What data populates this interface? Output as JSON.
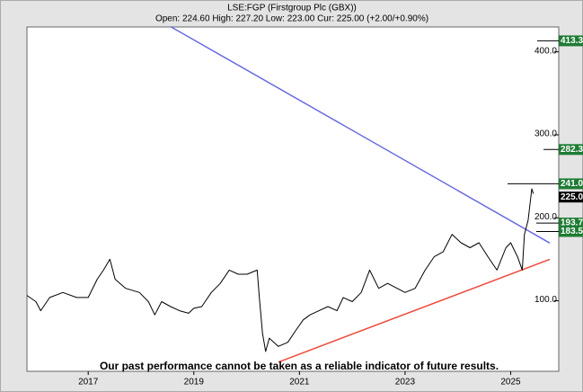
{
  "chart_data": {
    "type": "line",
    "title": "LSE:FGP (Firstgroup Plc (GBX))",
    "subtitle": "Open: 224.60 High: 227.20 Low: 223.00 Cur: 225.00 (+2.00/+0.90%)",
    "annotation": "Our past performance cannot be taken as a reliable indicator of future results.",
    "x": [
      2015.84,
      2016.01,
      2016.1,
      2016.27,
      2016.52,
      2016.78,
      2017.0,
      2017.17,
      2017.29,
      2017.41,
      2017.51,
      2017.71,
      2017.97,
      2018.14,
      2018.26,
      2018.39,
      2018.56,
      2018.73,
      2018.9,
      2019.0,
      2019.15,
      2019.33,
      2019.5,
      2019.67,
      2019.84,
      2020.01,
      2020.2,
      2020.24,
      2020.3,
      2020.36,
      2020.43,
      2020.6,
      2020.78,
      2020.95,
      2021.07,
      2021.2,
      2021.37,
      2021.54,
      2021.71,
      2021.83,
      2022.0,
      2022.17,
      2022.33,
      2022.5,
      2022.67,
      2022.85,
      2023.0,
      2023.19,
      2023.38,
      2023.55,
      2023.72,
      2023.89,
      2024.06,
      2024.23,
      2024.4,
      2024.57,
      2024.74,
      2024.91,
      2025.0,
      2025.13,
      2025.22,
      2025.26,
      2025.33,
      2025.4,
      2025.43
    ],
    "values": [
      106.5,
      99,
      88,
      104,
      110,
      104,
      104,
      126,
      137,
      150,
      126,
      115,
      110,
      99,
      83,
      99,
      93,
      88,
      85,
      91,
      93,
      110,
      121,
      137,
      132,
      132,
      137,
      104,
      61,
      39,
      55,
      45,
      50,
      66,
      77,
      83,
      88,
      93,
      88,
      104,
      99,
      110,
      137,
      115,
      121,
      115,
      110,
      115,
      137,
      153,
      159,
      180,
      170,
      164,
      170,
      153,
      137,
      164,
      170,
      153,
      137,
      180,
      197,
      235,
      229
    ],
    "color": "#000000",
    "trendlines": [
      {
        "x": [
          2018.56,
          2025.74
        ],
        "values": [
          430.4,
          169.6
        ],
        "color": "#6a6ae0"
      },
      {
        "x": [
          2020.6,
          2025.74
        ],
        "values": [
          26,
          150
        ],
        "color": "#ee4a3a"
      }
    ],
    "levels": {
      "values": [
        413.3,
        282.3,
        241,
        225,
        193.7,
        183.5
      ],
      "value_labels": [
        "413.3",
        "282.3",
        "241.0",
        "225.0",
        "193.7",
        "183.5"
      ],
      "colors": [
        "#1e7b34",
        "#1e7b34",
        "#1e7b34",
        "#000000",
        "#1e7b34",
        "#1e7b34"
      ]
    },
    "xlim": [
      2015.84,
      2025.91
    ],
    "xticks": [
      2017,
      2019,
      2021,
      2023,
      2025
    ],
    "ylim": [
      15,
      430
    ],
    "yticks": [
      {
        "value": 100,
        "label": "100.0"
      },
      {
        "value": 200,
        "label": "200.0"
      },
      {
        "value": 300,
        "label": "300.0"
      },
      {
        "value": 400,
        "label": "400.0"
      }
    ]
  }
}
